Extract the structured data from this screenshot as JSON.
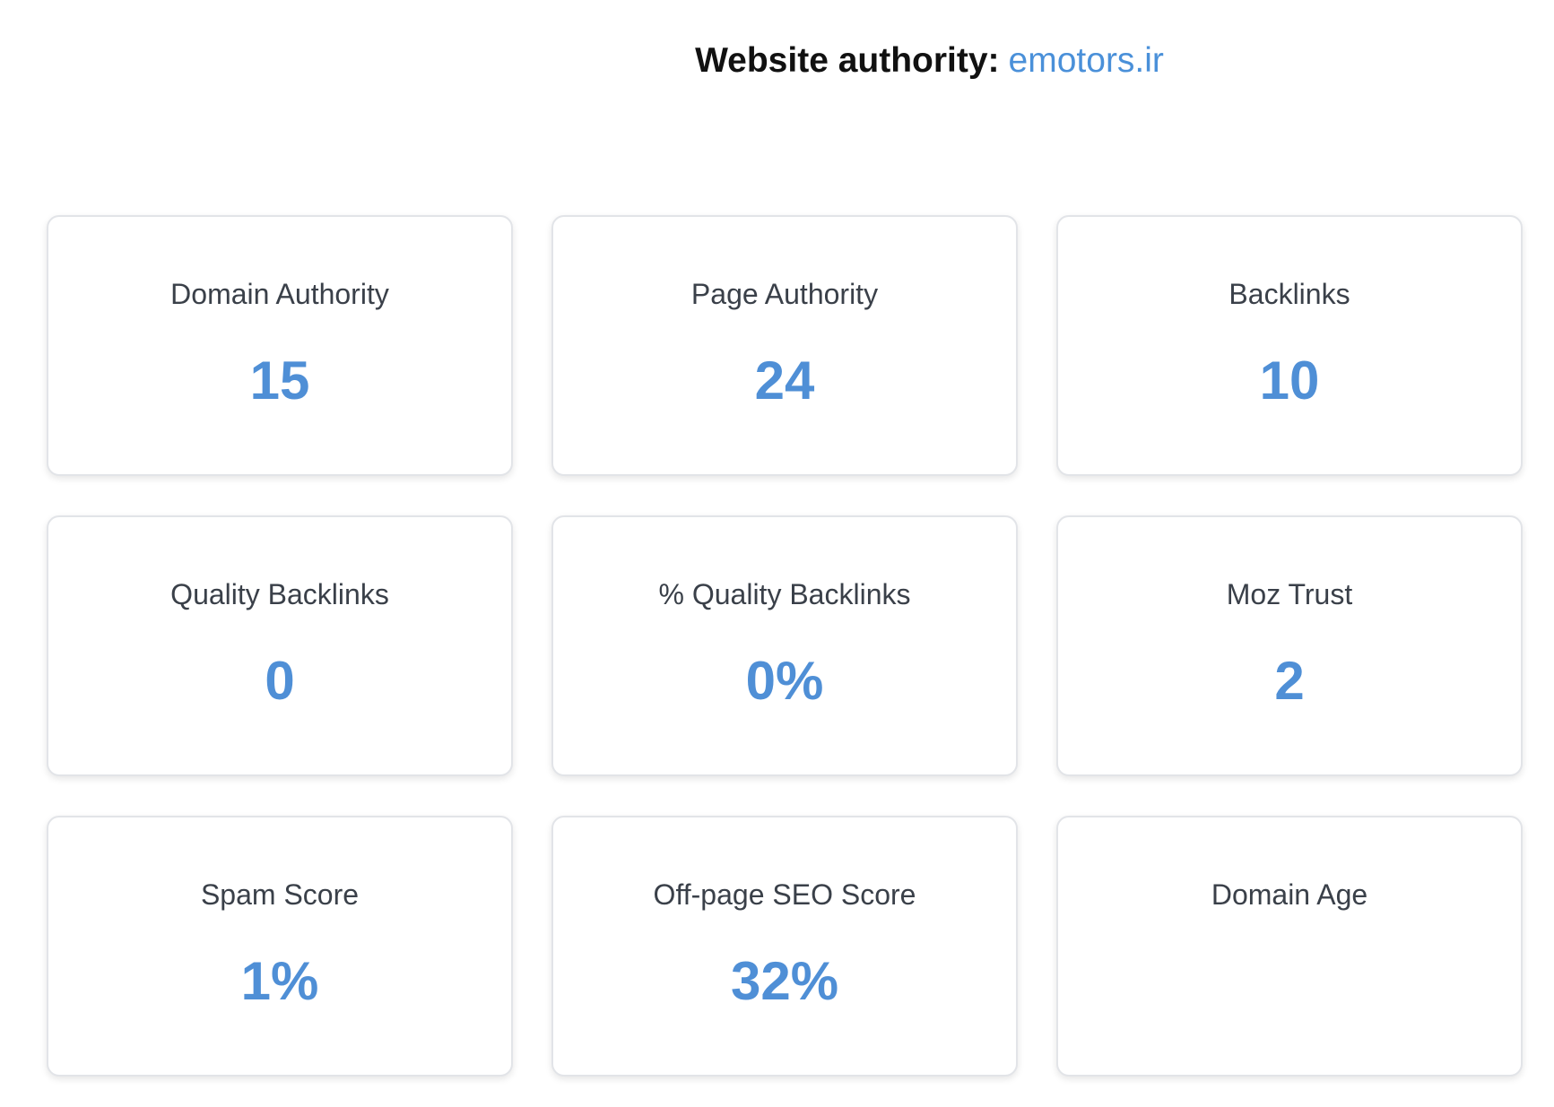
{
  "header": {
    "label": "Website authority:",
    "domain": "emotors.ir"
  },
  "colors": {
    "accent": "#4f8fd6",
    "link": "#4a90d9",
    "title_text": "#3a4049",
    "card_border": "#e2e4e8"
  },
  "metrics": [
    {
      "title": "Domain Authority",
      "value": "15"
    },
    {
      "title": "Page Authority",
      "value": "24"
    },
    {
      "title": "Backlinks",
      "value": "10"
    },
    {
      "title": "Quality Backlinks",
      "value": "0"
    },
    {
      "title": "% Quality Backlinks",
      "value": "0%"
    },
    {
      "title": "Moz Trust",
      "value": "2"
    },
    {
      "title": "Spam Score",
      "value": "1%"
    },
    {
      "title": "Off-page SEO Score",
      "value": "32%"
    },
    {
      "title": "Domain Age",
      "value": ""
    }
  ]
}
